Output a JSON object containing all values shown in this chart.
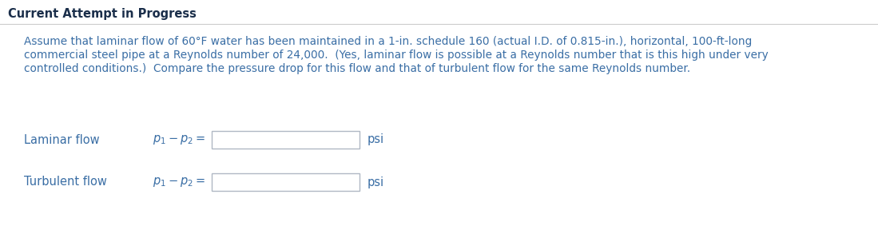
{
  "title": "Current Attempt in Progress",
  "title_fontsize": 10.5,
  "title_color": "#1a2e4a",
  "body_text_line1": "Assume that laminar flow of 60°F water has been maintained in a 1-in. schedule 160 (actual I.D. of 0.815-in.), horizontal, 100-ft-long",
  "body_text_line2": "commercial steel pipe at a Reynolds number of 24,000.  (Yes, laminar flow is possible at a Reynolds number that is this high under very",
  "body_text_line3": "controlled conditions.)  Compare the pressure drop for this flow and that of turbulent flow for the same Reynolds number.",
  "body_fontsize": 9.8,
  "body_color": "#3a6ea5",
  "laminar_label": "Laminar flow",
  "laminar_eq": "$p_1 - p_2 =$",
  "laminar_unit": "psi",
  "turbulent_label": "Turbulent flow",
  "turbulent_eq": "$p_1 - p_2 =$",
  "turbulent_unit": "psi",
  "input_box_facecolor": "#ffffff",
  "input_box_edgecolor": "#b0b8c4",
  "bg_color": "#ffffff",
  "separator_color": "#cccccc",
  "row_fontsize": 10.5,
  "row_color": "#3a6ea5",
  "title_bg": "#ffffff"
}
